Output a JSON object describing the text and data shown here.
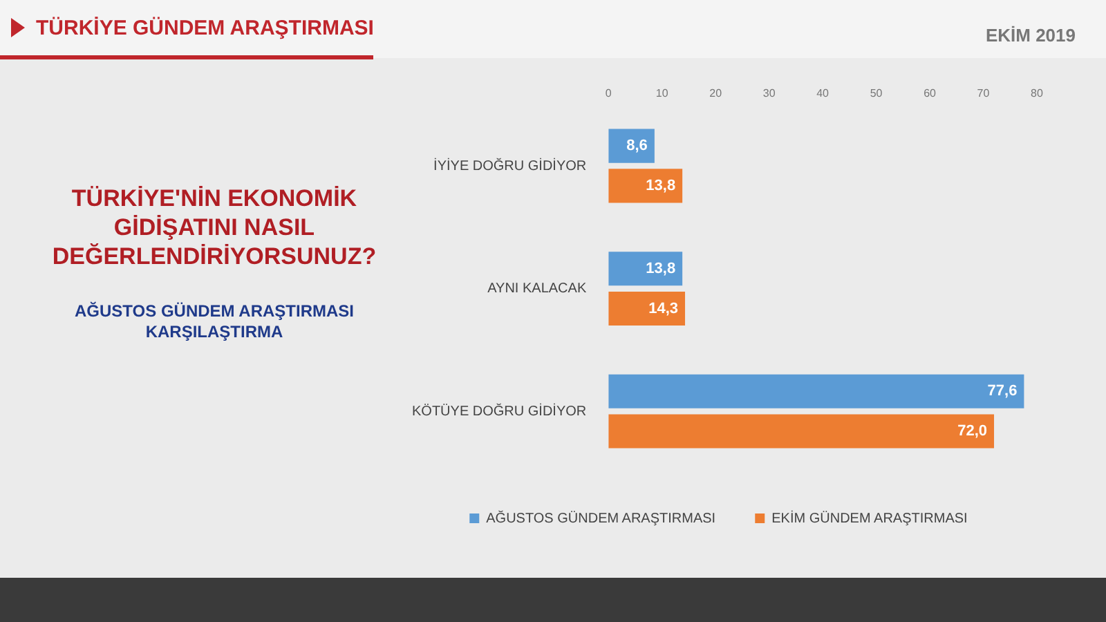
{
  "chart_data": {
    "type": "bar",
    "orientation": "horizontal",
    "title": "TÜRKİYE'NİN EKONOMİK GİDİŞATINI NASIL DEĞERLENDİRİYORSUNUZ?",
    "subtitle": "AĞUSTOS GÜNDEM ARAŞTIRMASI KARŞILAŞTIRMA",
    "annotations": [
      "TÜRKİYE GÜNDEM ARAŞTIRMASI",
      "EKİM 2019"
    ],
    "categories": [
      "İYİYE DOĞRU GİDİYOR",
      "AYNI KALACAK",
      "KÖTÜYE DOĞRU GİDİYOR"
    ],
    "series": [
      {
        "name": "AĞUSTOS GÜNDEM ARAŞTIRMASI",
        "color": "#5b9bd5",
        "values": [
          8.6,
          13.8,
          77.6
        ],
        "value_labels": [
          "8,6",
          "13,8",
          "77,6"
        ]
      },
      {
        "name": "EKİM GÜNDEM ARAŞTIRMASI",
        "color": "#ed7d31",
        "values": [
          13.8,
          14.3,
          72.0
        ],
        "value_labels": [
          "13,8",
          "14,3",
          "72,0"
        ]
      }
    ],
    "xlim": [
      0,
      80
    ],
    "xticks": [
      0,
      10,
      20,
      30,
      40,
      50,
      60,
      70,
      80
    ],
    "grid": false,
    "legend": "bottom"
  }
}
